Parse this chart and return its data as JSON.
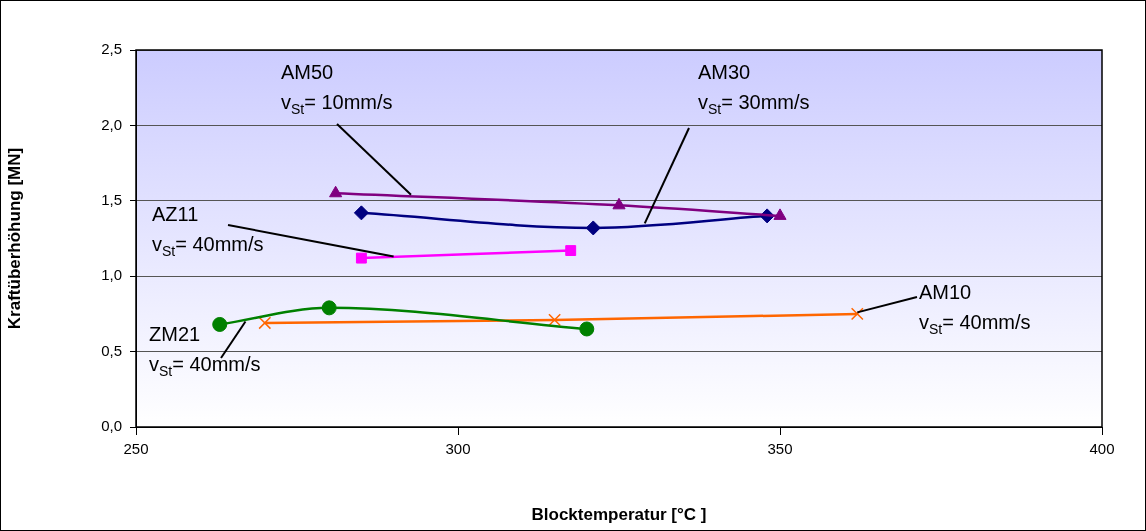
{
  "chart_data": {
    "type": "line",
    "xlabel": "Blocktemperatur [°C ]",
    "ylabel": "Kraftüberhöhung [MN]",
    "xlim": [
      250,
      400
    ],
    "xticks": [
      250,
      300,
      350,
      400
    ],
    "ylim": [
      0,
      2.5
    ],
    "yticks": [
      {
        "value": 0,
        "label": "0,0"
      },
      {
        "value": 0.5,
        "label": "0,5"
      },
      {
        "value": 1,
        "label": "1,0"
      },
      {
        "value": 1.5,
        "label": "1,5"
      },
      {
        "value": 2,
        "label": "2,0"
      },
      {
        "value": 2.5,
        "label": "2,5"
      }
    ],
    "grid": "y",
    "legend": false,
    "line_style": "solid",
    "series": [
      {
        "color": "#800080",
        "marker": "triangle",
        "x": [
          281,
          325,
          350
        ],
        "values": [
          1.55,
          1.47,
          1.4
        ]
      },
      {
        "color": "#000080",
        "marker": "diamond",
        "x": [
          285,
          321,
          348
        ],
        "values": [
          1.42,
          1.32,
          1.4
        ]
      },
      {
        "color": "#ff00ff",
        "marker": "square",
        "x": [
          285,
          317.5
        ],
        "values": [
          1.12,
          1.17
        ]
      },
      {
        "color": "#008000",
        "marker": "circle",
        "x": [
          263,
          280,
          320
        ],
        "values": [
          0.68,
          0.79,
          0.65
        ]
      },
      {
        "color": "#ff6600",
        "marker": "cross",
        "x": [
          270,
          315,
          362
        ],
        "values": [
          0.69,
          0.71,
          0.75
        ]
      }
    ],
    "annotations": [
      {
        "text": "AM50\nv$_{St}$= 10mm/s",
        "x": 292.7,
        "y": 1.54
      },
      {
        "text": "AM30\nv$_{St}$= 30mm/s",
        "x": 329,
        "y": 1.35
      },
      {
        "text": "AZ11\nv$_{St}$= 40mm/s",
        "x": 290,
        "y": 1.13
      },
      {
        "text": "ZM21\nv$_{St}$= 40mm/s",
        "x": 267,
        "y": 0.7
      },
      {
        "text": "AM10\nv$_{St}$= 40mm/s",
        "x": 362,
        "y": 0.76
      }
    ]
  }
}
